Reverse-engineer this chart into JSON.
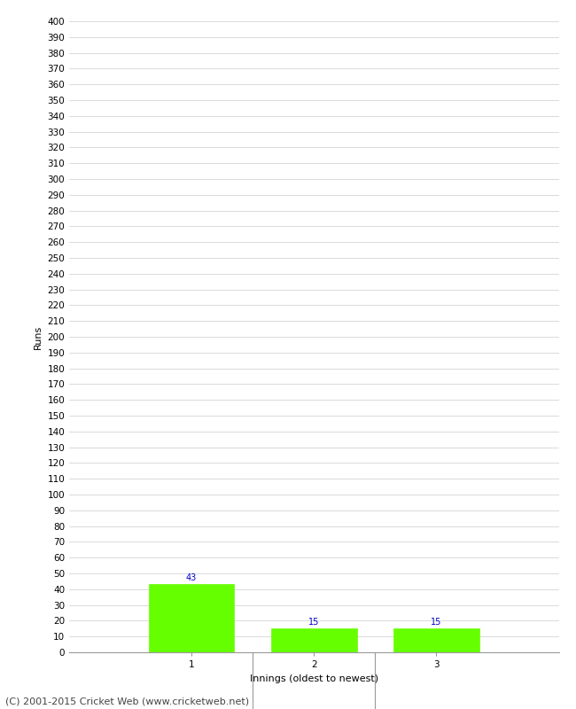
{
  "categories": [
    "1",
    "2",
    "3"
  ],
  "values": [
    43,
    15,
    15
  ],
  "bar_color": "#66ff00",
  "bar_edge_color": "#66ff00",
  "xlabel": "Innings (oldest to newest)",
  "ylabel": "Runs",
  "ylim": [
    0,
    400
  ],
  "ytick_step": 10,
  "background_color": "#ffffff",
  "grid_color": "#cccccc",
  "annotation_color": "#0000cc",
  "annotation_fontsize": 7,
  "footer_text": "(C) 2001-2015 Cricket Web (www.cricketweb.net)",
  "footer_fontsize": 8,
  "axis_label_fontsize": 8,
  "tick_label_fontsize": 7.5
}
